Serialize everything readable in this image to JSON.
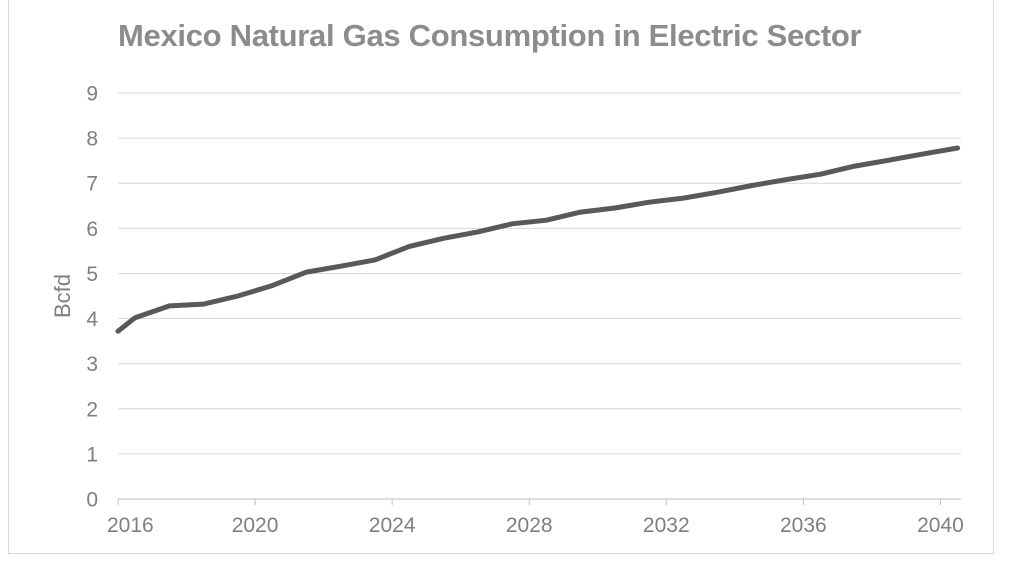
{
  "chart_data": {
    "type": "line",
    "title": "Mexico Natural Gas Consumption in Electric Sector",
    "xlabel": "",
    "ylabel": "Bcfd",
    "xlim": [
      2016,
      2040.6
    ],
    "ylim": [
      0,
      9
    ],
    "y_ticks": [
      0,
      1,
      2,
      3,
      4,
      5,
      6,
      7,
      8,
      9
    ],
    "x_ticks": [
      2016,
      2020,
      2024,
      2028,
      2032,
      2036,
      2040
    ],
    "grid": true,
    "legend": "none",
    "line_color": "#595959",
    "x": [
      2016,
      2016.5,
      2017.5,
      2018.5,
      2019.5,
      2020.5,
      2021.5,
      2022.5,
      2023.5,
      2024.5,
      2025.5,
      2026.5,
      2027.5,
      2028.5,
      2029.5,
      2030.5,
      2031.5,
      2032.5,
      2033.5,
      2034.5,
      2035.5,
      2036.5,
      2037.5,
      2038.5,
      2039.5,
      2040.5
    ],
    "values": [
      3.72,
      4.02,
      4.28,
      4.32,
      4.5,
      4.73,
      5.03,
      5.16,
      5.3,
      5.6,
      5.78,
      5.92,
      6.1,
      6.18,
      6.36,
      6.45,
      6.58,
      6.67,
      6.8,
      6.95,
      7.08,
      7.2,
      7.38,
      7.51,
      7.65,
      7.78
    ]
  }
}
